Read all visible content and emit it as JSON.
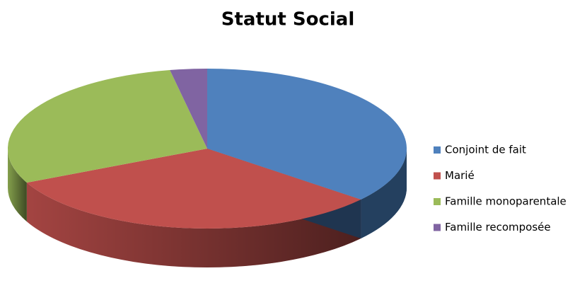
{
  "chart_data": {
    "type": "pie",
    "title": "Statut Social",
    "categories": [
      "Conjoint de fait",
      "Marié",
      "Famille monoparentale",
      "Famille recomposée"
    ],
    "values": [
      36,
      32,
      29,
      3
    ],
    "colors": [
      "#4f81bd",
      "#c0504d",
      "#9bbb59",
      "#8064a2"
    ],
    "legend": "right"
  }
}
